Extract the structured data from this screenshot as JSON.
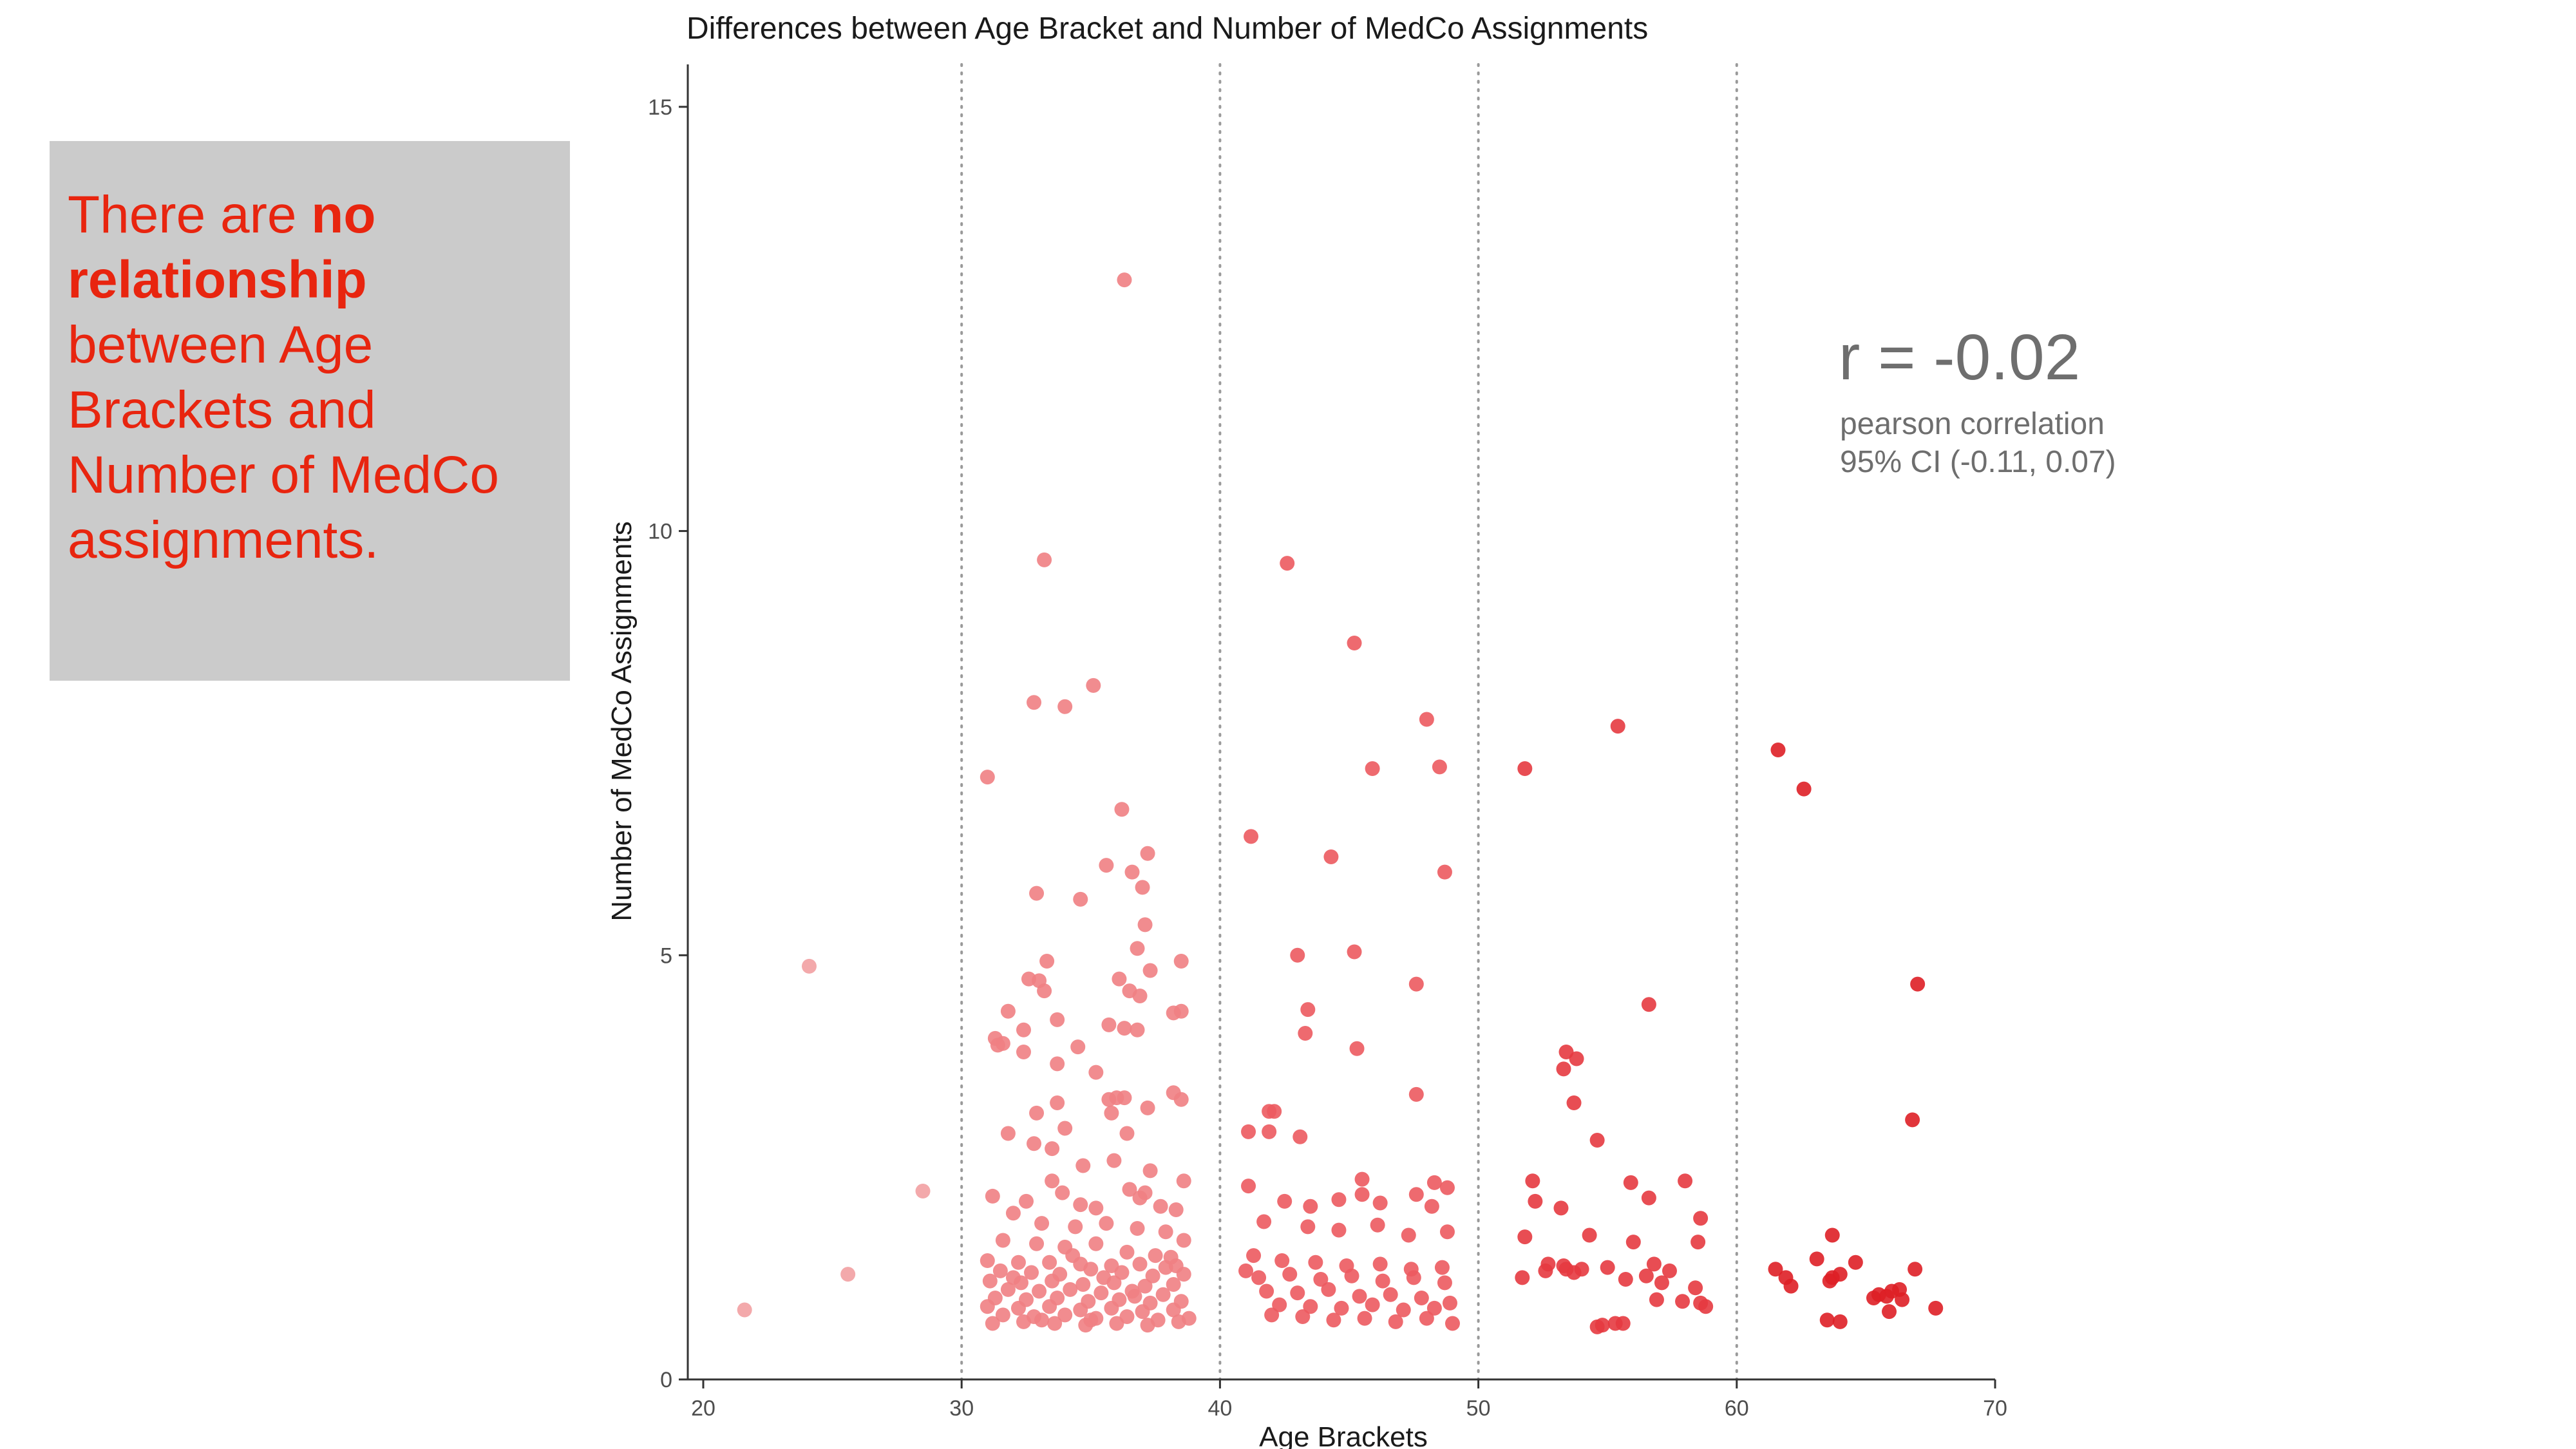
{
  "note": {
    "text_before": "There are ",
    "text_bold": "no relationship",
    "text_after": " between Age Brackets and Number of MedCo assignments."
  },
  "stats": {
    "r_text": "r = -0.02",
    "method_text": "pearson correlation",
    "ci_text": "95% CI (-0.11, 0.07)"
  },
  "colors": {
    "bracket_20s": "#f2a0a2",
    "bracket_30s": "#f08083",
    "bracket_40s": "#ec5a5f",
    "bracket_50s": "#e63a40",
    "bracket_60s": "#de1f26"
  },
  "chart_data": {
    "type": "scatter",
    "title": "Differences between Age Bracket and Number of MedCo Assignments",
    "xlabel": "Age Brackets",
    "ylabel": "Number of MedCo Assignments",
    "xlim": [
      20,
      70
    ],
    "ylim": [
      0,
      15.5
    ],
    "xticks": [
      20,
      30,
      40,
      50,
      60,
      70
    ],
    "yticks": [
      0,
      5,
      10,
      15
    ],
    "vlines_dotted": [
      30,
      40,
      50,
      60
    ],
    "grid": false,
    "legend": "none",
    "series": [
      {
        "color_key": "bracket_20s",
        "points": [
          [
            21.6,
            0.82
          ],
          [
            24.1,
            4.87
          ],
          [
            25.6,
            1.24
          ],
          [
            28.5,
            2.22
          ]
        ]
      },
      {
        "color_key": "bracket_30s",
        "points": [
          [
            36.3,
            12.96
          ],
          [
            33.2,
            9.66
          ],
          [
            35.1,
            8.18
          ],
          [
            32.8,
            7.98
          ],
          [
            34.0,
            7.93
          ],
          [
            31.0,
            7.1
          ],
          [
            36.2,
            6.72
          ],
          [
            35.6,
            6.06
          ],
          [
            36.6,
            5.98
          ],
          [
            37.2,
            6.2
          ],
          [
            37.0,
            5.8
          ],
          [
            32.9,
            5.73
          ],
          [
            34.6,
            5.66
          ],
          [
            37.1,
            5.36
          ],
          [
            36.8,
            5.08
          ],
          [
            33.3,
            4.93
          ],
          [
            38.5,
            4.93
          ],
          [
            37.3,
            4.82
          ],
          [
            32.6,
            4.72
          ],
          [
            33.0,
            4.7
          ],
          [
            36.1,
            4.72
          ],
          [
            36.5,
            4.58
          ],
          [
            33.2,
            4.58
          ],
          [
            31.8,
            4.34
          ],
          [
            36.9,
            4.52
          ],
          [
            32.4,
            4.12
          ],
          [
            38.2,
            4.32
          ],
          [
            38.5,
            4.34
          ],
          [
            31.3,
            4.02
          ],
          [
            31.6,
            3.96
          ],
          [
            33.7,
            4.24
          ],
          [
            35.7,
            4.18
          ],
          [
            36.3,
            4.14
          ],
          [
            36.8,
            4.12
          ],
          [
            31.4,
            3.94
          ],
          [
            34.5,
            3.92
          ],
          [
            32.4,
            3.86
          ],
          [
            33.7,
            3.72
          ],
          [
            35.2,
            3.62
          ],
          [
            38.2,
            3.38
          ],
          [
            38.5,
            3.3
          ],
          [
            35.7,
            3.3
          ],
          [
            36.0,
            3.32
          ],
          [
            36.3,
            3.32
          ],
          [
            33.7,
            3.26
          ],
          [
            37.2,
            3.2
          ],
          [
            32.9,
            3.14
          ],
          [
            35.8,
            3.14
          ],
          [
            34.0,
            2.96
          ],
          [
            36.4,
            2.9
          ],
          [
            31.8,
            2.9
          ],
          [
            32.8,
            2.78
          ],
          [
            33.5,
            2.72
          ],
          [
            35.9,
            2.58
          ],
          [
            34.7,
            2.52
          ],
          [
            37.3,
            2.46
          ],
          [
            38.6,
            2.34
          ],
          [
            33.5,
            2.34
          ],
          [
            36.5,
            2.24
          ],
          [
            37.1,
            2.2
          ],
          [
            31.2,
            2.16
          ],
          [
            32.5,
            2.1
          ],
          [
            33.9,
            2.2
          ],
          [
            34.6,
            2.06
          ],
          [
            35.2,
            2.02
          ],
          [
            36.9,
            2.14
          ],
          [
            37.7,
            2.04
          ],
          [
            38.3,
            2.0
          ],
          [
            32.0,
            1.96
          ],
          [
            33.1,
            1.84
          ],
          [
            34.4,
            1.8
          ],
          [
            35.6,
            1.84
          ],
          [
            36.8,
            1.78
          ],
          [
            37.9,
            1.74
          ],
          [
            38.6,
            1.64
          ],
          [
            31.6,
            1.64
          ],
          [
            32.9,
            1.6
          ],
          [
            34.0,
            1.56
          ],
          [
            35.2,
            1.6
          ],
          [
            36.4,
            1.5
          ],
          [
            37.5,
            1.46
          ],
          [
            38.1,
            1.44
          ],
          [
            31.0,
            1.4
          ],
          [
            32.2,
            1.38
          ],
          [
            33.4,
            1.38
          ],
          [
            34.6,
            1.36
          ],
          [
            35.8,
            1.34
          ],
          [
            36.9,
            1.36
          ],
          [
            38.3,
            1.34
          ],
          [
            31.5,
            1.28
          ],
          [
            32.7,
            1.26
          ],
          [
            33.8,
            1.24
          ],
          [
            35.0,
            1.3
          ],
          [
            36.2,
            1.26
          ],
          [
            37.4,
            1.22
          ],
          [
            38.6,
            1.24
          ],
          [
            31.1,
            1.16
          ],
          [
            32.3,
            1.14
          ],
          [
            33.5,
            1.16
          ],
          [
            34.7,
            1.12
          ],
          [
            35.9,
            1.14
          ],
          [
            37.1,
            1.1
          ],
          [
            38.2,
            1.12
          ],
          [
            31.8,
            1.06
          ],
          [
            33.0,
            1.04
          ],
          [
            34.2,
            1.06
          ],
          [
            35.4,
            1.02
          ],
          [
            36.6,
            1.04
          ],
          [
            37.8,
            1.0
          ],
          [
            31.3,
            0.96
          ],
          [
            32.5,
            0.94
          ],
          [
            33.7,
            0.96
          ],
          [
            34.9,
            0.92
          ],
          [
            36.1,
            0.94
          ],
          [
            37.3,
            0.9
          ],
          [
            38.5,
            0.92
          ],
          [
            31.0,
            0.86
          ],
          [
            32.2,
            0.84
          ],
          [
            33.4,
            0.86
          ],
          [
            34.6,
            0.82
          ],
          [
            35.8,
            0.84
          ],
          [
            37.0,
            0.8
          ],
          [
            38.2,
            0.82
          ],
          [
            31.6,
            0.76
          ],
          [
            32.8,
            0.74
          ],
          [
            34.0,
            0.76
          ],
          [
            35.2,
            0.72
          ],
          [
            36.4,
            0.74
          ],
          [
            37.6,
            0.7
          ],
          [
            38.8,
            0.72
          ],
          [
            31.2,
            0.66
          ],
          [
            32.4,
            0.68
          ],
          [
            33.6,
            0.66
          ],
          [
            34.8,
            0.64
          ],
          [
            36.0,
            0.66
          ],
          [
            37.2,
            0.64
          ],
          [
            38.4,
            0.68
          ],
          [
            33.1,
            0.7
          ],
          [
            34.3,
            1.46
          ],
          [
            35.5,
            1.2
          ],
          [
            36.7,
            0.98
          ],
          [
            37.9,
            1.32
          ],
          [
            32.0,
            1.2
          ],
          [
            35.0,
            0.7
          ]
        ]
      },
      {
        "color_key": "bracket_40s",
        "points": [
          [
            42.6,
            9.62
          ],
          [
            45.2,
            8.68
          ],
          [
            48.0,
            7.78
          ],
          [
            45.9,
            7.2
          ],
          [
            48.5,
            7.22
          ],
          [
            41.2,
            6.4
          ],
          [
            44.3,
            6.16
          ],
          [
            48.7,
            5.98
          ],
          [
            45.2,
            5.04
          ],
          [
            43.0,
            5.0
          ],
          [
            47.6,
            4.66
          ],
          [
            43.4,
            4.36
          ],
          [
            43.3,
            4.08
          ],
          [
            45.3,
            3.9
          ],
          [
            47.6,
            3.36
          ],
          [
            41.9,
            3.16
          ],
          [
            42.1,
            3.16
          ],
          [
            41.1,
            2.92
          ],
          [
            41.9,
            2.92
          ],
          [
            43.1,
            2.86
          ],
          [
            45.5,
            2.36
          ],
          [
            48.3,
            2.32
          ],
          [
            48.8,
            2.26
          ],
          [
            41.1,
            2.28
          ],
          [
            42.5,
            2.1
          ],
          [
            43.5,
            2.04
          ],
          [
            44.6,
            2.12
          ],
          [
            45.5,
            2.18
          ],
          [
            46.2,
            2.08
          ],
          [
            47.6,
            2.18
          ],
          [
            48.2,
            2.04
          ],
          [
            41.7,
            1.86
          ],
          [
            43.4,
            1.8
          ],
          [
            44.6,
            1.76
          ],
          [
            46.1,
            1.82
          ],
          [
            47.3,
            1.7
          ],
          [
            48.8,
            1.74
          ],
          [
            41.3,
            1.46
          ],
          [
            42.4,
            1.4
          ],
          [
            43.7,
            1.38
          ],
          [
            44.9,
            1.34
          ],
          [
            46.2,
            1.36
          ],
          [
            47.4,
            1.3
          ],
          [
            48.6,
            1.32
          ],
          [
            41.5,
            1.2
          ],
          [
            42.7,
            1.24
          ],
          [
            43.9,
            1.18
          ],
          [
            45.1,
            1.22
          ],
          [
            46.3,
            1.16
          ],
          [
            47.5,
            1.2
          ],
          [
            48.7,
            1.14
          ],
          [
            41.8,
            1.04
          ],
          [
            43.0,
            1.02
          ],
          [
            44.2,
            1.06
          ],
          [
            45.4,
            0.98
          ],
          [
            46.6,
            1.0
          ],
          [
            47.8,
            0.96
          ],
          [
            42.3,
            0.88
          ],
          [
            43.5,
            0.86
          ],
          [
            44.7,
            0.84
          ],
          [
            45.9,
            0.88
          ],
          [
            47.1,
            0.82
          ],
          [
            48.3,
            0.84
          ],
          [
            42.0,
            0.76
          ],
          [
            43.2,
            0.74
          ],
          [
            44.4,
            0.7
          ],
          [
            45.6,
            0.72
          ],
          [
            46.8,
            0.68
          ],
          [
            48.0,
            0.72
          ],
          [
            49.0,
            0.66
          ],
          [
            41.0,
            1.28
          ],
          [
            48.9,
            0.9
          ]
        ]
      },
      {
        "color_key": "bracket_50s",
        "points": [
          [
            55.4,
            7.7
          ],
          [
            51.8,
            7.2
          ],
          [
            56.6,
            4.42
          ],
          [
            53.4,
            3.86
          ],
          [
            53.8,
            3.78
          ],
          [
            53.3,
            3.66
          ],
          [
            53.7,
            3.26
          ],
          [
            54.6,
            2.82
          ],
          [
            52.1,
            2.34
          ],
          [
            55.9,
            2.32
          ],
          [
            58.0,
            2.34
          ],
          [
            56.6,
            2.14
          ],
          [
            52.2,
            2.1
          ],
          [
            53.2,
            2.02
          ],
          [
            58.6,
            1.9
          ],
          [
            51.8,
            1.68
          ],
          [
            54.3,
            1.7
          ],
          [
            56.0,
            1.62
          ],
          [
            58.5,
            1.62
          ],
          [
            52.7,
            1.36
          ],
          [
            53.3,
            1.34
          ],
          [
            54.0,
            1.3
          ],
          [
            55.0,
            1.32
          ],
          [
            56.8,
            1.36
          ],
          [
            57.4,
            1.28
          ],
          [
            51.7,
            1.2
          ],
          [
            52.6,
            1.28
          ],
          [
            53.7,
            1.26
          ],
          [
            55.7,
            1.18
          ],
          [
            56.5,
            1.22
          ],
          [
            57.1,
            1.14
          ],
          [
            58.4,
            1.08
          ],
          [
            56.9,
            0.94
          ],
          [
            57.9,
            0.92
          ],
          [
            58.6,
            0.9
          ],
          [
            55.3,
            0.66
          ],
          [
            55.6,
            0.66
          ],
          [
            54.6,
            0.62
          ],
          [
            54.8,
            0.64
          ],
          [
            53.4,
            1.3
          ],
          [
            58.8,
            0.86
          ]
        ]
      },
      {
        "color_key": "bracket_60s",
        "points": [
          [
            61.6,
            7.42
          ],
          [
            62.6,
            6.96
          ],
          [
            67.0,
            4.66
          ],
          [
            66.8,
            3.06
          ],
          [
            63.7,
            1.7
          ],
          [
            63.1,
            1.42
          ],
          [
            64.6,
            1.38
          ],
          [
            61.5,
            1.3
          ],
          [
            61.9,
            1.2
          ],
          [
            63.7,
            1.2
          ],
          [
            64.0,
            1.24
          ],
          [
            66.9,
            1.3
          ],
          [
            62.1,
            1.1
          ],
          [
            63.6,
            1.16
          ],
          [
            66.3,
            1.06
          ],
          [
            65.5,
            1.0
          ],
          [
            66.0,
            1.04
          ],
          [
            65.8,
            0.98
          ],
          [
            66.4,
            0.94
          ],
          [
            65.3,
            0.96
          ],
          [
            67.7,
            0.84
          ],
          [
            65.9,
            0.8
          ],
          [
            63.5,
            0.7
          ],
          [
            64.0,
            0.68
          ]
        ]
      }
    ]
  }
}
